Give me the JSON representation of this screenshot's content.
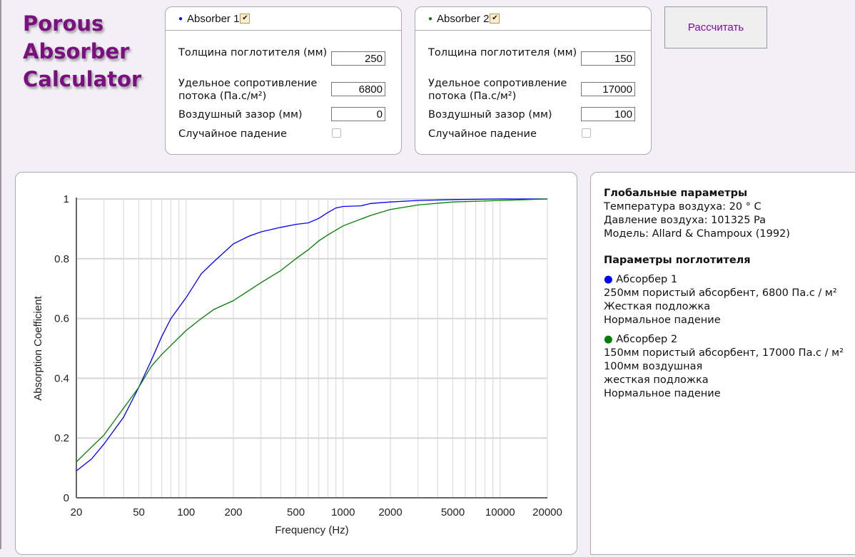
{
  "app_title": "Porous Absorber Calculator",
  "app_title_lines": [
    "Porous",
    "Absorber",
    "Calculator"
  ],
  "calculate_label": "Рассчитать",
  "absorbers": [
    {
      "name": "Absorber 1",
      "color": "#0000ff",
      "enabled": true,
      "thickness_label": "Толщина поглотителя (мм)",
      "thickness": "250",
      "resistivity_label": "Удельное сопротивление потока (Па.с/м²)",
      "resistivity": "6800",
      "airgap_label": "Воздушный зазор (мм)",
      "airgap": "0",
      "random_label": "Случайное падение",
      "random": false
    },
    {
      "name": "Absorber 2",
      "color": "#008000",
      "enabled": true,
      "thickness_label": "Толщина поглотителя (мм)",
      "thickness": "150",
      "resistivity_label": "Удельное сопротивление потока (Па.с/м²)",
      "resistivity": "17000",
      "airgap_label": "Воздушный зазор (мм)",
      "airgap": "100",
      "random_label": "Случайное падение",
      "random": false
    }
  ],
  "info": {
    "global_title": "Глобальные параметры",
    "temperature": "Температура воздуха: 20 ° C",
    "pressure": "Давление воздуха: 101325 Pa",
    "model": "Модель: Allard & Champoux (1992)",
    "absorber_title": "Параметры поглотителя",
    "absorbers": [
      {
        "name": "Абсорбер 1",
        "lines": [
          "250мм пористый абсорбент, 6800 Па.с / м²",
          "Жесткая подложка",
          "Нормальное падение"
        ]
      },
      {
        "name": "Абсорбер 2",
        "lines": [
          "150мм пористый абсорбент, 17000 Па.с / м²",
          "100мм воздушная",
          "жесткая подложка",
          "Нормальное падение"
        ]
      }
    ]
  },
  "chart_data": {
    "type": "line",
    "xlabel": "Frequency (Hz)",
    "ylabel": "Absorption Coefficient",
    "xscale": "log",
    "xlim": [
      20,
      20000
    ],
    "ylim": [
      0,
      1
    ],
    "xticks": [
      20,
      50,
      100,
      200,
      500,
      1000,
      2000,
      5000,
      10000,
      20000
    ],
    "yticks": [
      0,
      0.2,
      0.4,
      0.6,
      0.8,
      1
    ],
    "grid": true,
    "series": [
      {
        "name": "Absorber 1",
        "color": "#0000ff",
        "x": [
          20,
          25,
          30,
          40,
          50,
          60,
          70,
          80,
          100,
          125,
          150,
          200,
          250,
          300,
          400,
          500,
          600,
          700,
          800,
          900,
          1000,
          1300,
          1500,
          2000,
          3000,
          5000,
          10000,
          20000
        ],
        "y": [
          0.09,
          0.13,
          0.18,
          0.27,
          0.37,
          0.46,
          0.54,
          0.6,
          0.67,
          0.75,
          0.79,
          0.85,
          0.875,
          0.89,
          0.905,
          0.915,
          0.92,
          0.935,
          0.955,
          0.97,
          0.975,
          0.977,
          0.985,
          0.99,
          0.995,
          0.998,
          1.0,
          1.0
        ]
      },
      {
        "name": "Absorber 2",
        "color": "#008000",
        "x": [
          20,
          25,
          30,
          40,
          50,
          60,
          70,
          80,
          100,
          125,
          150,
          200,
          300,
          400,
          500,
          600,
          700,
          800,
          1000,
          1500,
          2000,
          3000,
          5000,
          10000,
          20000
        ],
        "y": [
          0.12,
          0.17,
          0.21,
          0.3,
          0.37,
          0.44,
          0.48,
          0.51,
          0.56,
          0.6,
          0.63,
          0.66,
          0.72,
          0.76,
          0.8,
          0.83,
          0.86,
          0.88,
          0.91,
          0.945,
          0.965,
          0.98,
          0.99,
          0.995,
          1.0
        ]
      }
    ]
  }
}
